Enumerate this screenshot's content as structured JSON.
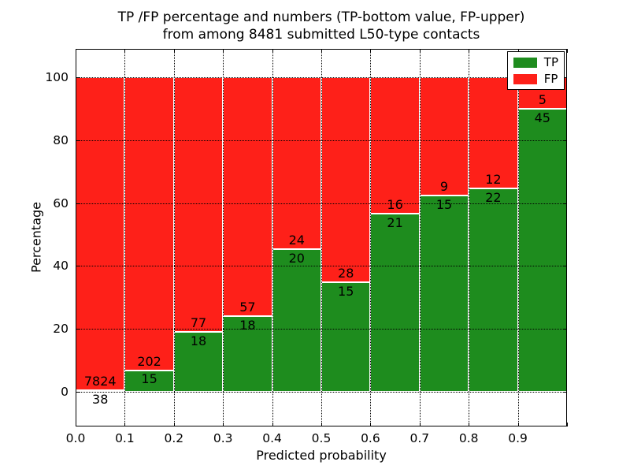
{
  "chart_data": {
    "type": "bar",
    "stacked": true,
    "title_line1": "TP /FP percentage and numbers (TP-bottom value, FP-upper)",
    "title_line2": "from among 8481 submitted L50-type contacts",
    "total_contacts": 8481,
    "xlabel": "Predicted probability",
    "ylabel": "Percentage",
    "xticks": [
      "0.0",
      "0.1",
      "0.2",
      "0.3",
      "0.4",
      "0.5",
      "0.6",
      "0.7",
      "0.8",
      "0.9"
    ],
    "yticks": [
      0,
      20,
      40,
      60,
      80,
      100
    ],
    "xlim": [
      0.0,
      1.0
    ],
    "ylim": [
      -11,
      109
    ],
    "bin_width": 0.1,
    "grid": "dotted",
    "colors": {
      "tp": "#1e8c1e",
      "fp": "#fe2019",
      "bar_edge": "#ffffff",
      "text": "#000000"
    },
    "legend": {
      "position": "upper right",
      "entries": [
        {
          "label": "TP",
          "color": "#1e8c1e"
        },
        {
          "label": "FP",
          "color": "#fe2019"
        }
      ]
    },
    "bins": [
      {
        "range": "0.0-0.1",
        "tp": 38,
        "fp": 7824,
        "tp_percent": 0.5
      },
      {
        "range": "0.1-0.2",
        "tp": 15,
        "fp": 202,
        "tp_percent": 6.9
      },
      {
        "range": "0.2-0.3",
        "tp": 18,
        "fp": 77,
        "tp_percent": 18.9
      },
      {
        "range": "0.3-0.4",
        "tp": 18,
        "fp": 57,
        "tp_percent": 24.0
      },
      {
        "range": "0.4-0.5",
        "tp": 20,
        "fp": 24,
        "tp_percent": 45.5
      },
      {
        "range": "0.5-0.6",
        "tp": 15,
        "fp": 28,
        "tp_percent": 34.9
      },
      {
        "range": "0.6-0.7",
        "tp": 21,
        "fp": 16,
        "tp_percent": 56.8
      },
      {
        "range": "0.7-0.8",
        "tp": 15,
        "fp": 9,
        "tp_percent": 62.5
      },
      {
        "range": "0.8-0.9",
        "tp": 22,
        "fp": 12,
        "tp_percent": 64.7
      },
      {
        "range": "0.9-1.0",
        "tp": 45,
        "fp": 5,
        "tp_percent": 90.0
      }
    ]
  }
}
